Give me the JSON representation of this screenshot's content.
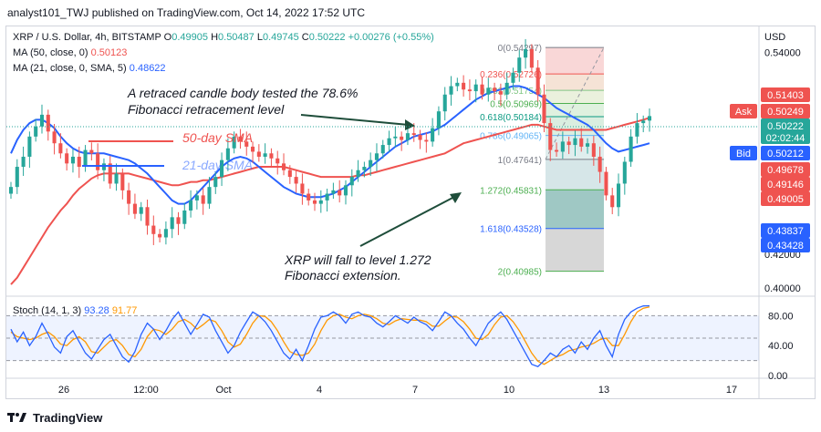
{
  "header": {
    "publisher_line": "analyst101_TWJ published on TradingView.com, Oct 14, 2022 17:52 UTC"
  },
  "legend": {
    "symbol_line": "XRP / U.S. Dollar, 4h, BITSTAMP",
    "ohlc": {
      "o_label": "O",
      "o": "0.49905",
      "h_label": "H",
      "h": "0.50487",
      "l_label": "L",
      "l": "0.49745",
      "c_label": "C",
      "c": "0.50222",
      "chg": "+0.00276 (+0.55%)"
    },
    "ma50": {
      "label": "MA (50, close, 0)",
      "value": "0.50123"
    },
    "ma21": {
      "label": "MA (21, close, 0, SMA, 5)",
      "value": "0.48622"
    }
  },
  "currency": "USD",
  "price_axis_labels": [
    "0.54000",
    "0.42000",
    "0.40000"
  ],
  "price_tags": {
    "ask_label": "Ask",
    "ask": "0.50249",
    "last": "0.50222",
    "countdown": "02:02:44",
    "bid_label": "Bid",
    "bid": "0.50212",
    "others": [
      "0.51403",
      "0.49678",
      "0.49146",
      "0.49005",
      "0.43837",
      "0.43428"
    ]
  },
  "fib_levels": [
    {
      "ratio": "0",
      "price": "0.54297"
    },
    {
      "ratio": "0.236",
      "price": "0.52726"
    },
    {
      "ratio": "0.382",
      "price": "0.51754"
    },
    {
      "ratio": "0.5",
      "price": "0.50969"
    },
    {
      "ratio": "0.618",
      "price": "0.50184"
    },
    {
      "ratio": "0.786",
      "price": "0.49065"
    },
    {
      "ratio": "1",
      "price": "0.47641"
    },
    {
      "ratio": "1.272",
      "price": "0.45831"
    },
    {
      "ratio": "1.618",
      "price": "0.43528"
    },
    {
      "ratio": "2",
      "price": "0.40985"
    }
  ],
  "annotations": {
    "retrace": "A retraced candle body tested the  78.6% Fibonacci retracement level",
    "extension": "XRP will fall to level  1.272 Fibonacci extension.",
    "sma50": "50-day SMA",
    "sma21": "21-day SMA"
  },
  "x_axis_labels": [
    "26",
    "12:00",
    "Oct",
    "4",
    "7",
    "10",
    "13",
    "17"
  ],
  "stoch": {
    "label": "Stoch (14, 1, 3)",
    "k": "93.28",
    "d": "91.77",
    "axis_labels": [
      "80.00",
      "40.00",
      "0.00"
    ]
  },
  "colors": {
    "bull": "#26a69a",
    "bear": "#ef5350",
    "ma50": "#ef5350",
    "ma21": "#2962ff",
    "stoch_k": "#2962ff",
    "stoch_d": "#ff9800",
    "text": "#131722"
  },
  "footer": {
    "brand": "TradingView"
  },
  "chart_data": {
    "type": "candlestick",
    "title": "XRP / U.S. Dollar, 4h, BITSTAMP",
    "ylabel": "USD",
    "ylim": [
      0.395,
      0.555
    ],
    "grid": false,
    "candles_close": [
      0.46,
      0.472,
      0.478,
      0.49,
      0.496,
      0.503,
      0.493,
      0.486,
      0.48,
      0.474,
      0.478,
      0.472,
      0.482,
      0.48,
      0.47,
      0.474,
      0.462,
      0.468,
      0.458,
      0.45,
      0.444,
      0.448,
      0.437,
      0.432,
      0.43,
      0.435,
      0.442,
      0.438,
      0.446,
      0.452,
      0.455,
      0.45,
      0.46,
      0.466,
      0.476,
      0.483,
      0.49,
      0.487,
      0.484,
      0.481,
      0.478,
      0.48,
      0.477,
      0.474,
      0.47,
      0.466,
      0.462,
      0.456,
      0.452,
      0.45,
      0.452,
      0.456,
      0.458,
      0.455,
      0.461,
      0.466,
      0.47,
      0.472,
      0.476,
      0.48,
      0.485,
      0.489,
      0.49,
      0.488,
      0.492,
      0.491,
      0.488,
      0.487,
      0.495,
      0.505,
      0.515,
      0.52,
      0.522,
      0.518,
      0.517,
      0.521,
      0.515,
      0.519,
      0.517,
      0.515,
      0.522,
      0.528,
      0.537,
      0.542,
      0.531,
      0.515,
      0.498,
      0.482,
      0.481,
      0.487,
      0.485,
      0.489,
      0.484,
      0.486,
      0.478,
      0.469,
      0.455,
      0.448,
      0.462,
      0.475,
      0.49,
      0.498,
      0.4995,
      0.5022
    ],
    "stoch_k": [
      62,
      45,
      58,
      40,
      52,
      70,
      55,
      38,
      30,
      52,
      60,
      45,
      30,
      22,
      35,
      48,
      55,
      40,
      25,
      18,
      32,
      55,
      70,
      62,
      48,
      60,
      75,
      85,
      70,
      55,
      68,
      82,
      78,
      60,
      45,
      30,
      40,
      58,
      72,
      85,
      80,
      72,
      60,
      45,
      30,
      22,
      35,
      20,
      40,
      62,
      78,
      80,
      85,
      80,
      70,
      82,
      85,
      80,
      78,
      70,
      65,
      72,
      80,
      75,
      70,
      78,
      72,
      68,
      60,
      72,
      85,
      80,
      70,
      62,
      50,
      40,
      55,
      70,
      78,
      85,
      75,
      60,
      45,
      30,
      15,
      12,
      20,
      30,
      25,
      35,
      40,
      30,
      45,
      35,
      50,
      60,
      40,
      25,
      55,
      75,
      85,
      90,
      93,
      93.28
    ],
    "stoch_d": [
      58,
      52,
      50,
      48,
      50,
      55,
      58,
      52,
      42,
      40,
      48,
      52,
      45,
      32,
      30,
      38,
      46,
      48,
      40,
      28,
      25,
      35,
      52,
      62,
      60,
      55,
      62,
      72,
      75,
      70,
      62,
      68,
      75,
      72,
      60,
      45,
      38,
      42,
      55,
      70,
      80,
      79,
      72,
      60,
      45,
      32,
      28,
      27,
      30,
      42,
      60,
      74,
      80,
      82,
      78,
      76,
      80,
      82,
      80,
      76,
      70,
      68,
      73,
      76,
      75,
      74,
      74,
      72,
      66,
      66,
      73,
      79,
      78,
      72,
      62,
      50,
      48,
      55,
      68,
      78,
      80,
      72,
      60,
      45,
      30,
      19,
      15,
      20,
      25,
      28,
      33,
      35,
      38,
      40,
      43,
      48,
      50,
      40,
      40,
      55,
      72,
      85,
      90,
      91.77
    ],
    "ma50": [
      0.402,
      0.406,
      0.412,
      0.418,
      0.424,
      0.43,
      0.436,
      0.441,
      0.446,
      0.45,
      0.455,
      0.459,
      0.462,
      0.465,
      0.467,
      0.468,
      0.468,
      0.468,
      0.468,
      0.468,
      0.467,
      0.466,
      0.465,
      0.464,
      0.463,
      0.462,
      0.461,
      0.461,
      0.462,
      0.463,
      0.463,
      0.464,
      0.464,
      0.465,
      0.466,
      0.467,
      0.468,
      0.469,
      0.47,
      0.471,
      0.472,
      0.472,
      0.472,
      0.472,
      0.472,
      0.471,
      0.47,
      0.469,
      0.468,
      0.467,
      0.466,
      0.466,
      0.466,
      0.466,
      0.466,
      0.466,
      0.467,
      0.467,
      0.468,
      0.469,
      0.47,
      0.471,
      0.472,
      0.473,
      0.474,
      0.475,
      0.476,
      0.477,
      0.478,
      0.479,
      0.48,
      0.482,
      0.484,
      0.486,
      0.487,
      0.488,
      0.489,
      0.49,
      0.491,
      0.492,
      0.493,
      0.494,
      0.495,
      0.496,
      0.497,
      0.497,
      0.496,
      0.495,
      0.494,
      0.494,
      0.494,
      0.494,
      0.494,
      0.494,
      0.494,
      0.494,
      0.494,
      0.495,
      0.496,
      0.497,
      0.498,
      0.499,
      0.5,
      0.5012
    ],
    "ma21": [
      0.48,
      0.488,
      0.494,
      0.498,
      0.5,
      0.5,
      0.498,
      0.495,
      0.49,
      0.486,
      0.483,
      0.481,
      0.48,
      0.48,
      0.48,
      0.48,
      0.479,
      0.478,
      0.477,
      0.476,
      0.474,
      0.471,
      0.468,
      0.464,
      0.46,
      0.456,
      0.452,
      0.45,
      0.45,
      0.452,
      0.456,
      0.46,
      0.464,
      0.468,
      0.472,
      0.475,
      0.477,
      0.478,
      0.477,
      0.475,
      0.472,
      0.469,
      0.466,
      0.463,
      0.46,
      0.458,
      0.456,
      0.455,
      0.454,
      0.454,
      0.454,
      0.455,
      0.456,
      0.458,
      0.46,
      0.463,
      0.466,
      0.469,
      0.472,
      0.475,
      0.478,
      0.481,
      0.484,
      0.486,
      0.488,
      0.49,
      0.491,
      0.492,
      0.493,
      0.495,
      0.497,
      0.5,
      0.503,
      0.506,
      0.509,
      0.512,
      0.514,
      0.516,
      0.517,
      0.518,
      0.519,
      0.52,
      0.52,
      0.519,
      0.517,
      0.515,
      0.513,
      0.51,
      0.507,
      0.505,
      0.503,
      0.501,
      0.499,
      0.497,
      0.494,
      0.49,
      0.486,
      0.483,
      0.481,
      0.482,
      0.483,
      0.484,
      0.485,
      0.486
    ]
  }
}
